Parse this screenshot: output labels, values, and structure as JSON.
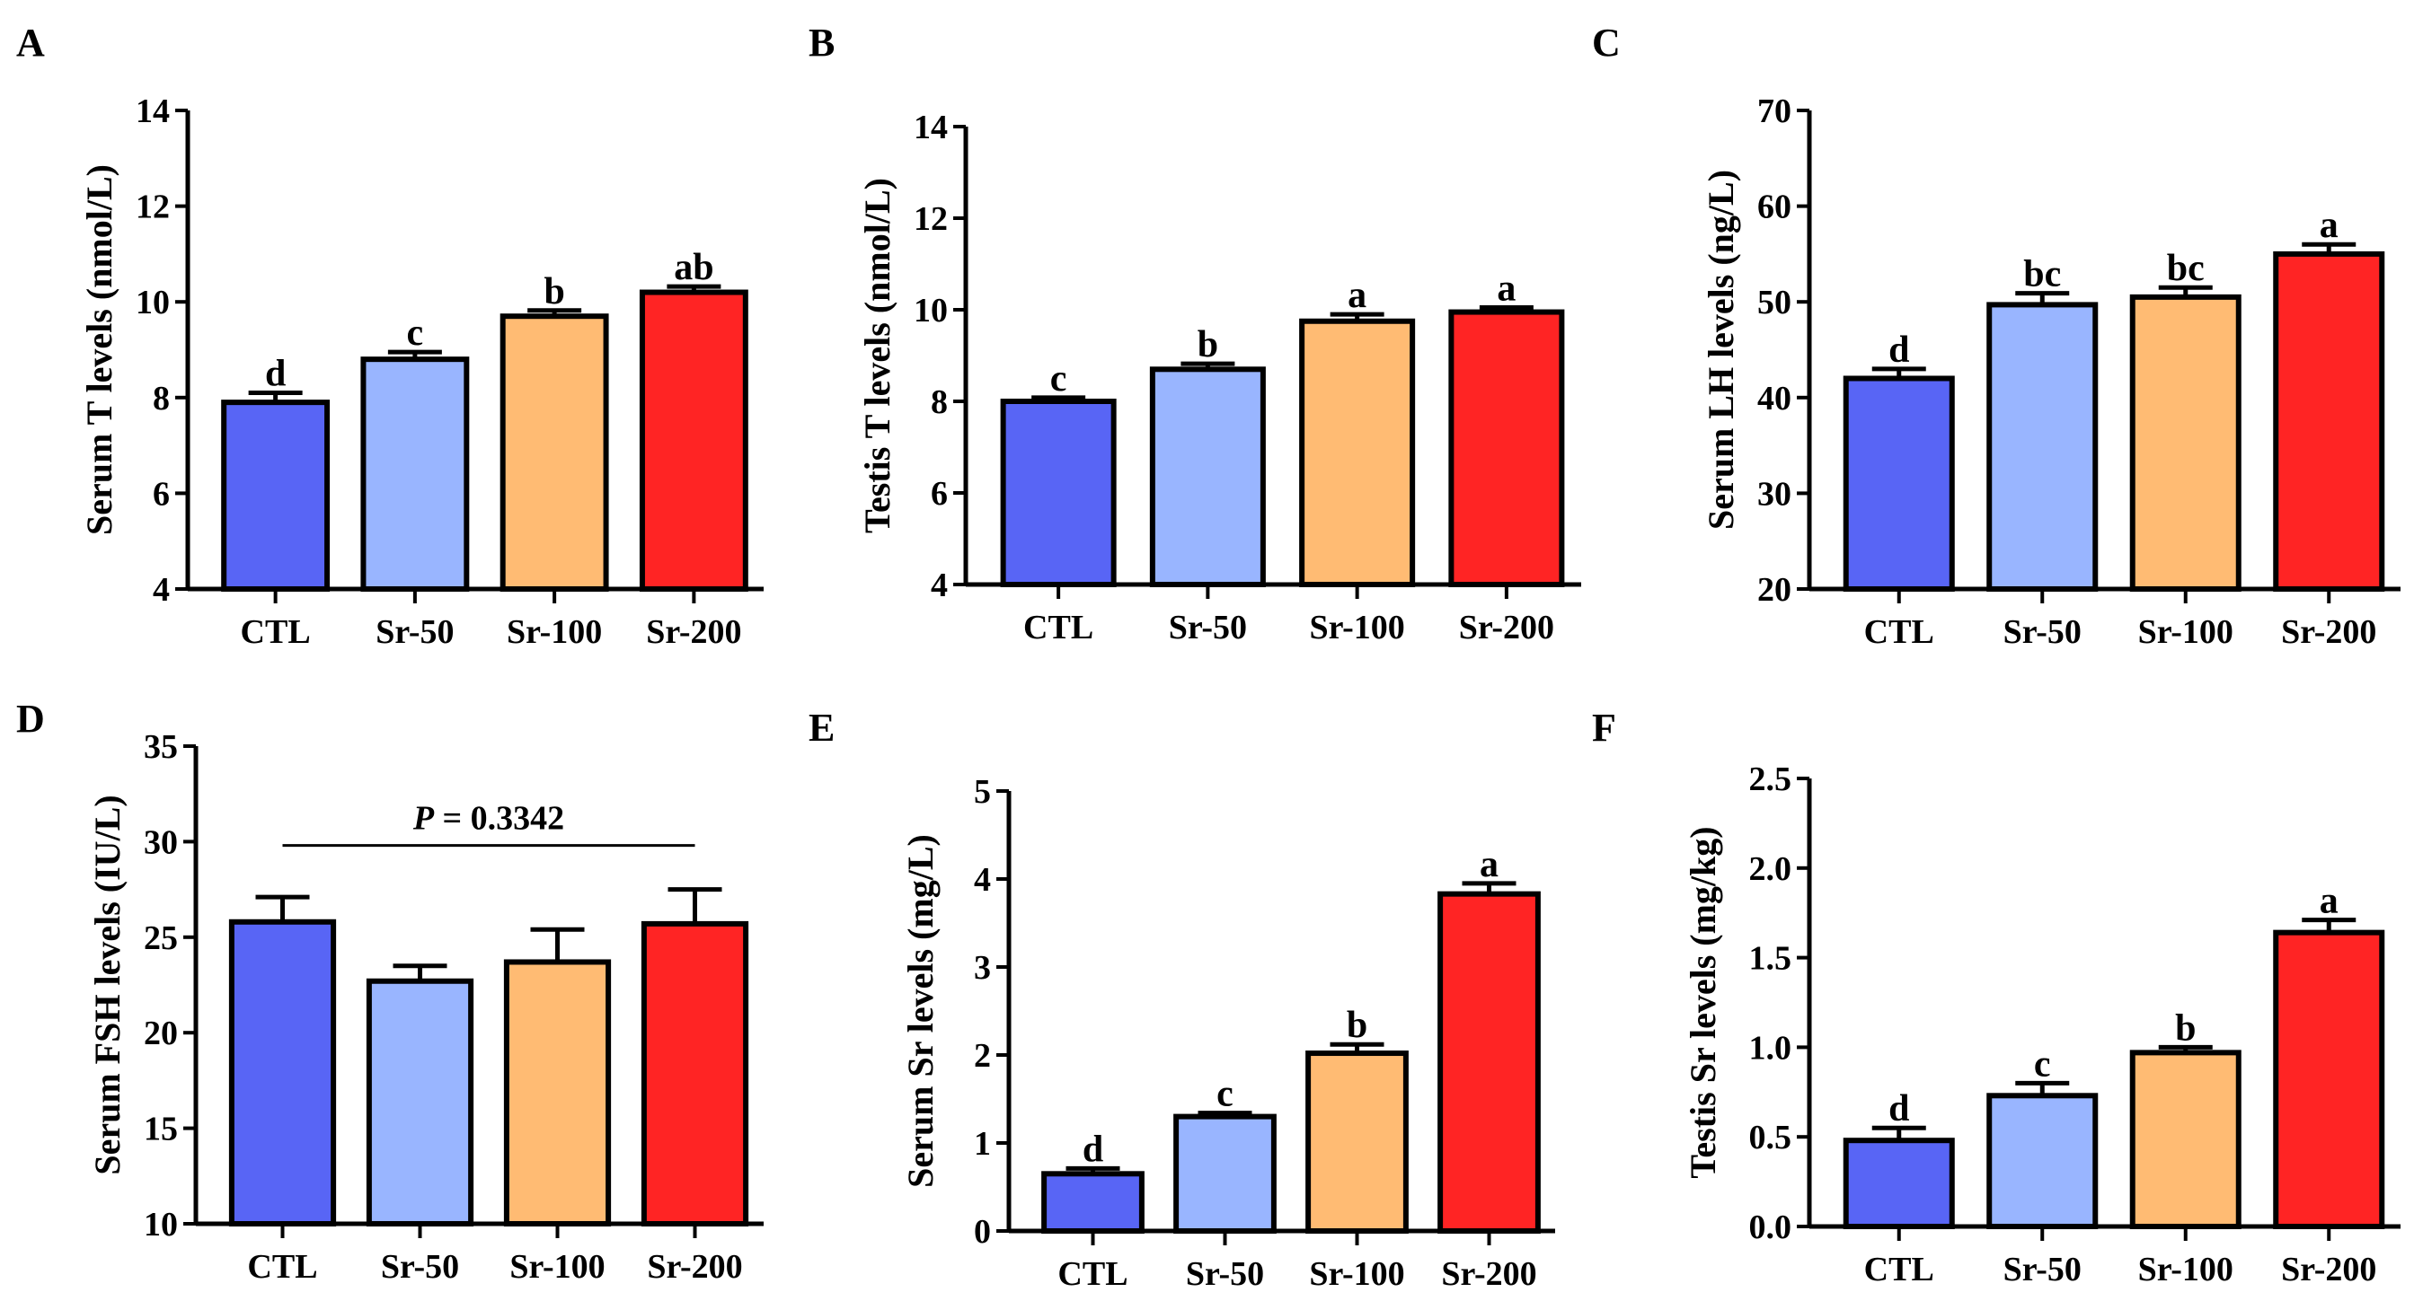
{
  "colors": [
    "#5865F5",
    "#99B5FF",
    "#FFBB73",
    "#FF2424"
  ],
  "chart_data": [
    {
      "panel": "A",
      "type": "bar",
      "categories": [
        "CTL",
        "Sr-50",
        "Sr-100",
        "Sr-200"
      ],
      "values": [
        7.9,
        8.8,
        9.7,
        10.2
      ],
      "errors": [
        0.2,
        0.15,
        0.12,
        0.12
      ],
      "letters": [
        "d",
        "c",
        "b",
        "ab"
      ],
      "ylabel": "Serum T levels (nmol/L)",
      "ylim": [
        4,
        14
      ],
      "yticks": [
        "4",
        "6",
        "8",
        "10",
        "12",
        "14"
      ]
    },
    {
      "panel": "B",
      "type": "bar",
      "categories": [
        "CTL",
        "Sr-50",
        "Sr-100",
        "Sr-200"
      ],
      "values": [
        8.0,
        8.7,
        9.75,
        9.95
      ],
      "errors": [
        0.08,
        0.12,
        0.15,
        0.1
      ],
      "letters": [
        "c",
        "b",
        "a",
        "a"
      ],
      "ylabel": "Testis T levels (nmol/L)",
      "ylim": [
        4,
        14
      ],
      "yticks": [
        "4",
        "6",
        "8",
        "10",
        "12",
        "14"
      ]
    },
    {
      "panel": "C",
      "type": "bar",
      "categories": [
        "CTL",
        "Sr-50",
        "Sr-100",
        "Sr-200"
      ],
      "values": [
        42,
        49.7,
        50.5,
        55
      ],
      "errors": [
        1.0,
        1.2,
        1.0,
        1.0
      ],
      "letters": [
        "d",
        "bc",
        "bc",
        "a"
      ],
      "ylabel": "Serum LH levels (ng/L)",
      "ylim": [
        20,
        70
      ],
      "yticks": [
        "20",
        "30",
        "40",
        "50",
        "60",
        "70"
      ]
    },
    {
      "panel": "D",
      "type": "bar",
      "categories": [
        "CTL",
        "Sr-50",
        "Sr-100",
        "Sr-200"
      ],
      "values": [
        25.8,
        22.7,
        23.7,
        25.7
      ],
      "errors": [
        1.3,
        0.8,
        1.7,
        1.8
      ],
      "letters": [
        "",
        "",
        "",
        ""
      ],
      "ylabel": "Serum FSH levels (IU/L)",
      "ylim": [
        10,
        35
      ],
      "yticks": [
        "10",
        "15",
        "20",
        "25",
        "30",
        "35"
      ],
      "annotation": {
        "p_symbol": "P",
        "p_text": " = 0.3342",
        "y": 29.8
      }
    },
    {
      "panel": "E",
      "type": "bar",
      "categories": [
        "CTL",
        "Sr-50",
        "Sr-100",
        "Sr-200"
      ],
      "values": [
        0.65,
        1.3,
        2.02,
        3.83
      ],
      "errors": [
        0.06,
        0.04,
        0.1,
        0.12
      ],
      "letters": [
        "d",
        "c",
        "b",
        "a"
      ],
      "ylabel": "Serum Sr levels (mg/L)",
      "ylim": [
        0,
        5
      ],
      "yticks": [
        "0",
        "1",
        "2",
        "3",
        "4",
        "5"
      ]
    },
    {
      "panel": "F",
      "type": "bar",
      "categories": [
        "CTL",
        "Sr-50",
        "Sr-100",
        "Sr-200"
      ],
      "values": [
        0.48,
        0.73,
        0.97,
        1.64
      ],
      "errors": [
        0.07,
        0.07,
        0.03,
        0.07
      ],
      "letters": [
        "d",
        "c",
        "b",
        "a"
      ],
      "ylabel": "Testis Sr levels (mg/kg)",
      "ylim": [
        0,
        2.5
      ],
      "yticks": [
        "0.0",
        "0.5",
        "1.0",
        "1.5",
        "2.0",
        "2.5"
      ]
    }
  ]
}
